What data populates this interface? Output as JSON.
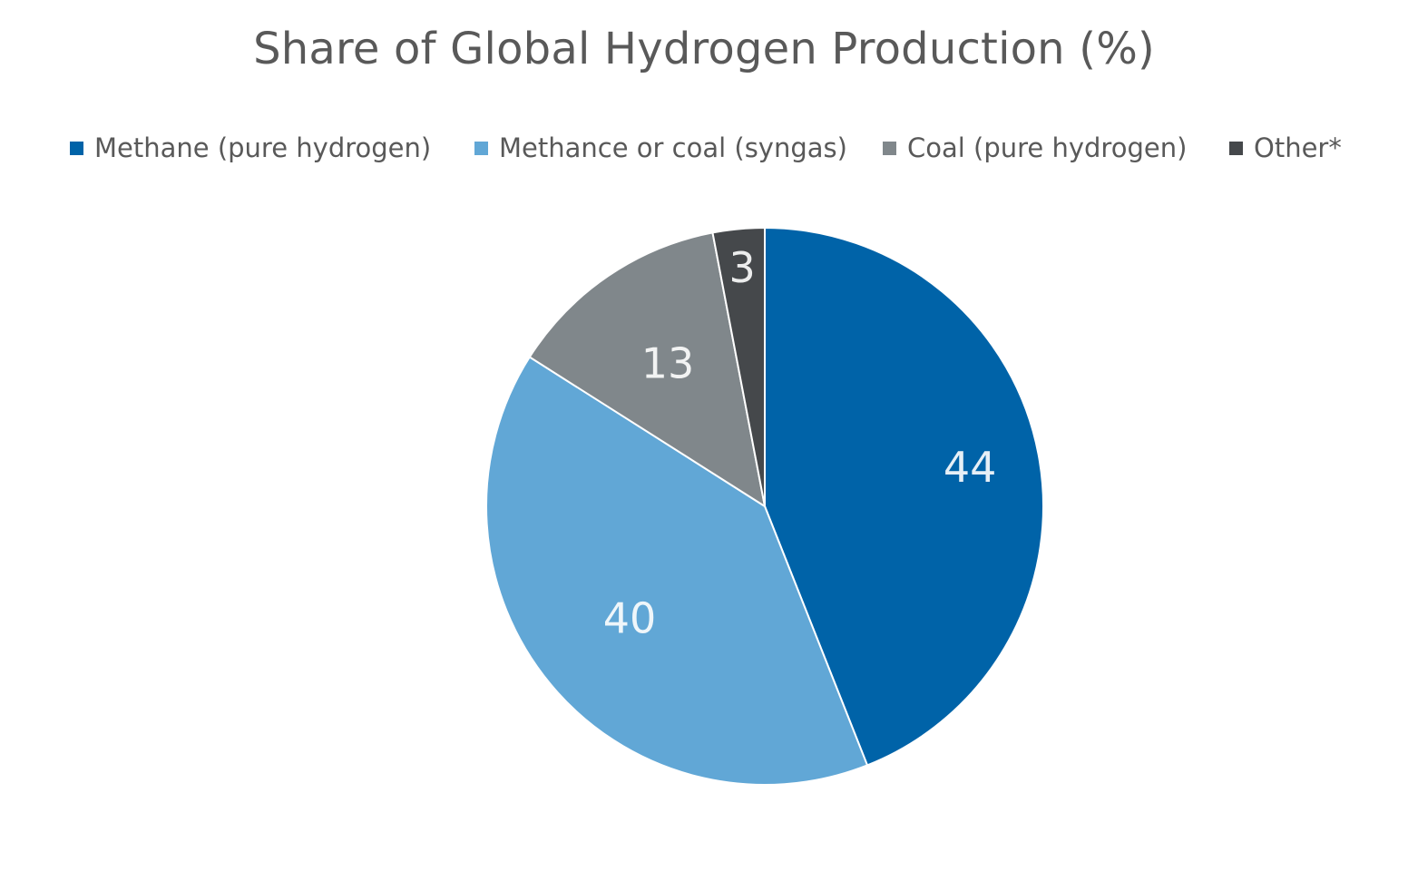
{
  "chart_data": {
    "type": "pie",
    "title": "Share of Global Hydrogen Production (%)",
    "legend_position": "top",
    "categories": [
      "Methane (pure hydrogen)",
      "Methance or coal (syngas)",
      "Coal (pure hydrogen)",
      "Other*"
    ],
    "values": [
      44,
      40,
      13,
      3
    ],
    "data_labels": [
      "44",
      "40",
      "13",
      "3"
    ],
    "colors": [
      "#0063A8",
      "#61A7D6",
      "#80878B",
      "#45484B"
    ]
  }
}
